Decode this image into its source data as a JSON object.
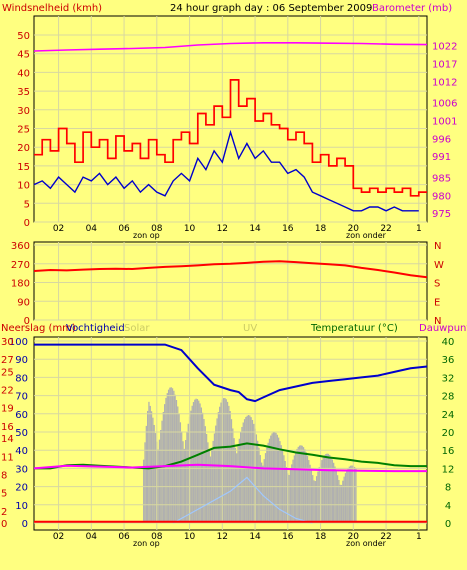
{
  "header": {
    "left_label": "Windsnelheid (kmh)",
    "title": "24 hour graph day : 06 September 2009",
    "right_label": "Barometer (mb)"
  },
  "colors": {
    "background": "#ffff80",
    "wind_gust": "#ff0000",
    "wind_avg": "#0000cc",
    "barometer": "#ff00ff",
    "rain": "#ff0000",
    "humidity": "#0000cc",
    "solar": "#b0b0b0",
    "uv": "#a0c8ff",
    "temperature": "#008000",
    "dewpoint": "#ff00ff"
  },
  "axis": {
    "hour_ticks": [
      "02",
      "04",
      "06",
      "08",
      "10",
      "12",
      "14",
      "16",
      "18",
      "20",
      "22",
      "1"
    ],
    "sunrise_label": "zon op",
    "sunset_label": "zon onder"
  },
  "chart_data": [
    {
      "type": "line",
      "title": "24 hour graph day : 06 September 2009",
      "ylabel": "Windsnelheid (kmh)",
      "y2label": "Barometer (mb)",
      "x_unit": "hour",
      "xlim": [
        0,
        24
      ],
      "ylim": [
        0,
        50
      ],
      "y_ticks": [
        "0",
        "5",
        "10",
        "15",
        "20",
        "25",
        "30",
        "35",
        "40",
        "45",
        "50"
      ],
      "y2lim": [
        972.5,
        1025
      ],
      "y2_ticks": [
        "975",
        "980",
        "985",
        "991",
        "996",
        "1001",
        "1006",
        "1012",
        "1017",
        "1022"
      ],
      "series": [
        {
          "name": "gust",
          "color": "#ff0000",
          "axis": "left",
          "x": [
            0,
            0.5,
            1,
            1.5,
            2,
            2.5,
            3,
            3.5,
            4,
            4.5,
            5,
            5.5,
            6,
            6.5,
            7,
            7.5,
            8,
            8.5,
            9,
            9.5,
            10,
            10.5,
            11,
            11.5,
            12,
            12.5,
            13,
            13.5,
            14,
            14.5,
            15,
            15.5,
            16,
            16.5,
            17,
            17.5,
            18,
            18.5,
            19,
            19.5,
            20,
            20.5,
            21,
            21.5,
            22,
            22.5,
            23,
            23.5
          ],
          "values": [
            18,
            22,
            19,
            25,
            21,
            16,
            24,
            20,
            22,
            17,
            23,
            19,
            21,
            17,
            22,
            18,
            16,
            22,
            24,
            21,
            29,
            26,
            31,
            28,
            38,
            31,
            33,
            27,
            29,
            26,
            25,
            22,
            24,
            21,
            16,
            18,
            15,
            17,
            15,
            9,
            8,
            9,
            8,
            9,
            8,
            9,
            7,
            8
          ]
        },
        {
          "name": "average",
          "color": "#0000cc",
          "axis": "left",
          "x": [
            0,
            0.5,
            1,
            1.5,
            2,
            2.5,
            3,
            3.5,
            4,
            4.5,
            5,
            5.5,
            6,
            6.5,
            7,
            7.5,
            8,
            8.5,
            9,
            9.5,
            10,
            10.5,
            11,
            11.5,
            12,
            12.5,
            13,
            13.5,
            14,
            14.5,
            15,
            15.5,
            16,
            16.5,
            17,
            17.5,
            18,
            18.5,
            19,
            19.5,
            20,
            20.5,
            21,
            21.5,
            22,
            22.5,
            23,
            23.5
          ],
          "values": [
            10,
            11,
            9,
            12,
            10,
            8,
            12,
            11,
            13,
            10,
            12,
            9,
            11,
            8,
            10,
            8,
            7,
            11,
            13,
            11,
            17,
            14,
            19,
            16,
            24,
            17,
            21,
            17,
            19,
            16,
            16,
            13,
            14,
            12,
            8,
            7,
            6,
            5,
            4,
            3,
            3,
            4,
            4,
            3,
            4,
            3,
            3,
            3
          ]
        },
        {
          "name": "barometer",
          "color": "#ff00ff",
          "axis": "right",
          "x": [
            0,
            2,
            4,
            6,
            8,
            10,
            12,
            14,
            16,
            18,
            20,
            22,
            24
          ],
          "values": [
            1020.5,
            1020.8,
            1021,
            1021.2,
            1021.5,
            1022.2,
            1022.6,
            1022.8,
            1022.8,
            1022.7,
            1022.6,
            1022.4,
            1022.3
          ]
        }
      ]
    },
    {
      "type": "line",
      "x_unit": "hour",
      "xlim": [
        0,
        24
      ],
      "ylim": [
        0,
        360
      ],
      "y_ticks": [
        "0",
        "90",
        "180",
        "270",
        "360"
      ],
      "y2_ticks": [
        "N",
        "W",
        "S",
        "E",
        "N"
      ],
      "series": [
        {
          "name": "direction",
          "color": "#ff0000",
          "x": [
            0,
            1,
            2,
            3,
            4,
            5,
            6,
            7,
            8,
            9,
            10,
            11,
            12,
            13,
            14,
            15,
            16,
            17,
            18,
            19,
            20,
            21,
            22,
            23,
            24
          ],
          "values": [
            235,
            240,
            238,
            242,
            245,
            246,
            245,
            250,
            255,
            258,
            262,
            268,
            270,
            274,
            280,
            282,
            278,
            272,
            268,
            262,
            250,
            240,
            228,
            215,
            205
          ]
        }
      ]
    },
    {
      "type": "line",
      "x_unit": "hour",
      "xlim": [
        0,
        24
      ],
      "legend": [
        "Neerslag (mm)",
        "Vochtigheid",
        "Solar",
        "UV",
        "Temperatuur (°C)",
        "Dauwpunt"
      ],
      "y_ticks_rain": [
        "0",
        "2",
        "5",
        "8",
        "11",
        "14",
        "16",
        "19",
        "22",
        "25",
        "27",
        "30"
      ],
      "y_ticks_humidity": [
        "0",
        "10",
        "20",
        "30",
        "40",
        "50",
        "60",
        "70",
        "80",
        "90",
        "100"
      ],
      "y2lim": [
        0,
        40
      ],
      "y2_ticks": [
        "0",
        "4",
        "8",
        "12",
        "16",
        "20",
        "24",
        "28",
        "32",
        "36",
        "40"
      ],
      "series": [
        {
          "name": "Neerslag (mm)",
          "color": "#ff0000",
          "axis": "rain",
          "x": [
            0,
            24
          ],
          "values": [
            0.2,
            0.2
          ]
        },
        {
          "name": "Vochtigheid",
          "color": "#0000cc",
          "axis": "humidity",
          "x": [
            0,
            2,
            4,
            6,
            7,
            8,
            9,
            10,
            11,
            12,
            12.5,
            13,
            13.5,
            14,
            15,
            16,
            17,
            18,
            19,
            20,
            21,
            22,
            23,
            24
          ],
          "values": [
            98,
            98,
            98,
            98,
            98,
            98,
            95,
            85,
            76,
            73,
            72,
            68,
            67,
            69,
            73,
            75,
            77,
            78,
            79,
            80,
            81,
            83,
            85,
            86
          ]
        },
        {
          "name": "Temperatuur (°C)",
          "color": "#008000",
          "axis": "temp",
          "x": [
            0,
            1,
            2,
            3,
            4,
            5,
            6,
            7,
            8,
            9,
            10,
            11,
            12,
            13,
            14,
            15,
            16,
            17,
            18,
            19,
            20,
            21,
            22,
            23,
            24
          ],
          "values": [
            12,
            12,
            12.7,
            12.8,
            12.6,
            12.4,
            12.2,
            12,
            12.5,
            13.5,
            15,
            16.5,
            16.8,
            17.5,
            17,
            16.2,
            15.5,
            15,
            14.4,
            14,
            13.5,
            13.2,
            12.7,
            12.5,
            12.5
          ]
        },
        {
          "name": "Dauwpunt",
          "color": "#ff00ff",
          "axis": "temp",
          "x": [
            0,
            2,
            4,
            6,
            8,
            10,
            12,
            14,
            16,
            18,
            20,
            22,
            24
          ],
          "values": [
            12,
            12.6,
            12.4,
            12.2,
            12.5,
            12.8,
            12.5,
            12,
            11.8,
            11.6,
            11.5,
            11.4,
            11.4
          ]
        },
        {
          "name": "Solar",
          "color": "#b0b0b0",
          "axis": "humidity",
          "x": [
            6.7,
            7,
            8,
            9,
            10,
            11,
            12,
            13,
            14,
            15,
            16,
            17,
            18,
            19,
            19.7
          ],
          "values": [
            35,
            70,
            75,
            74,
            68,
            64,
            72,
            60,
            55,
            48,
            44,
            40,
            38,
            35,
            30
          ]
        },
        {
          "name": "UV",
          "color": "#a0c8ff",
          "axis": "temp",
          "x": [
            8.5,
            10,
            12,
            13,
            13.5,
            14,
            15,
            16,
            17
          ],
          "values": [
            0,
            3,
            7,
            10,
            8,
            6,
            3,
            1,
            0
          ]
        }
      ]
    }
  ]
}
